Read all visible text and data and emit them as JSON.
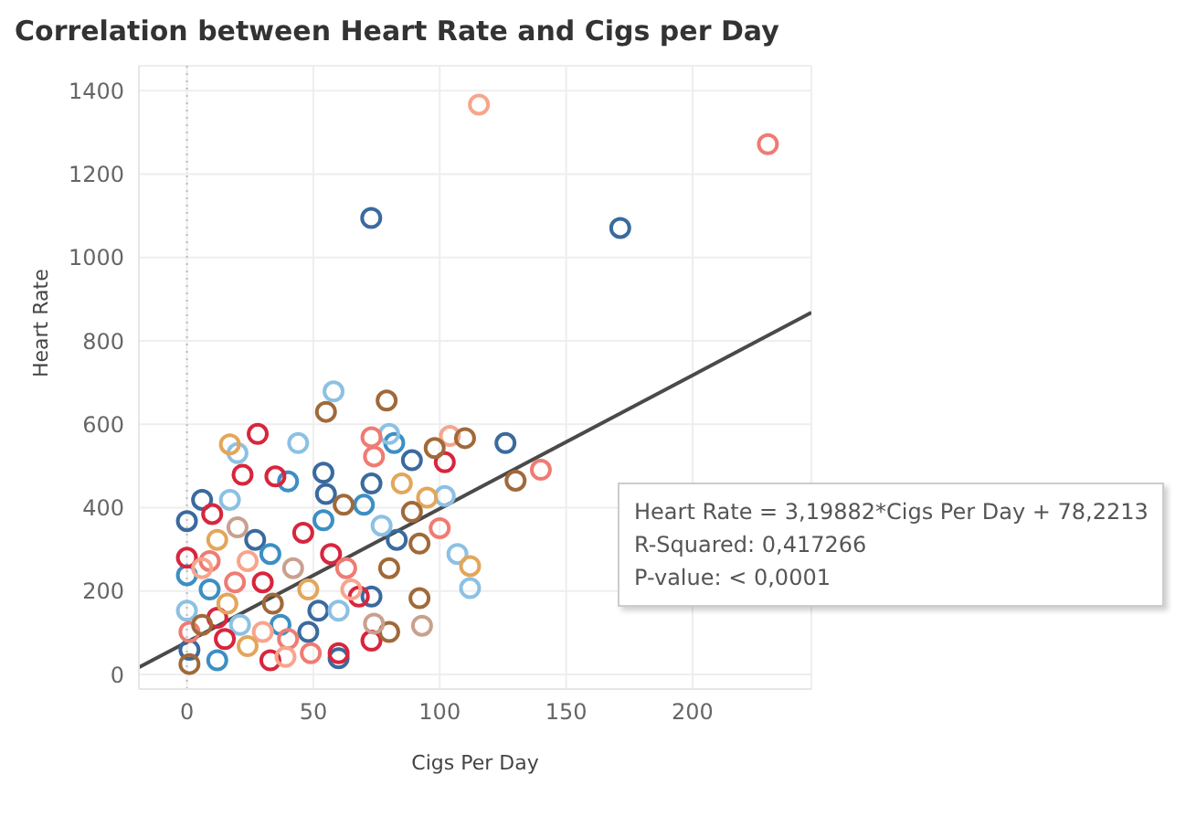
{
  "chart_data": {
    "type": "scatter",
    "title": "Correlation between Heart Rate and Cigs per Day",
    "xlabel": "Cigs Per Day",
    "ylabel": "Heart Rate",
    "xlim": [
      -19,
      247
    ],
    "ylim": [
      -35,
      1460
    ],
    "xticks": [
      0,
      50,
      100,
      150,
      200
    ],
    "yticks": [
      0,
      200,
      400,
      600,
      800,
      1000,
      1200,
      1400
    ],
    "grid": true,
    "marker": "circle",
    "ref_lines": [
      {
        "axis": "x",
        "value": 0,
        "color": "#bbbbbb",
        "line_style": "dotted"
      }
    ],
    "annotations": [
      "Heart Rate = 3,19882*Cigs Per Day + 78,2213",
      "R-Squared: 0,417266",
      "P-value: < 0,0001"
    ],
    "series": [
      {
        "color": "#3a6a9e",
        "x": [
          72.9,
          171.4,
          89,
          126,
          54,
          73,
          6,
          0,
          55,
          83,
          73,
          60,
          1,
          52,
          48,
          27
        ],
        "values": [
          1095,
          1071,
          514,
          555,
          484,
          458,
          419,
          368,
          433,
          323,
          187,
          39,
          59,
          153,
          102,
          323
        ]
      },
      {
        "color": "#3b8fc4",
        "x": [
          82,
          40,
          54,
          70,
          12,
          0,
          9,
          37,
          33
        ],
        "values": [
          555,
          463,
          370,
          407,
          34,
          238,
          204,
          119,
          289
        ]
      },
      {
        "color": "#8cc1e3",
        "x": [
          58,
          20,
          44,
          80,
          102,
          107,
          112,
          17,
          77,
          0,
          60,
          21
        ],
        "values": [
          679,
          531,
          555,
          577,
          428,
          289,
          207,
          419,
          357,
          153,
          153,
          119
        ]
      },
      {
        "color": "#d7263d",
        "x": [
          28,
          102,
          35,
          22,
          73,
          10,
          46,
          68,
          60,
          33,
          0,
          12,
          30,
          57,
          15
        ],
        "values": [
          577,
          509,
          475,
          479,
          81,
          385,
          340,
          187,
          51,
          34,
          280,
          136,
          221,
          289,
          85
        ]
      },
      {
        "color": "#ef7b73",
        "x": [
          229.8,
          73,
          74,
          140,
          100,
          49,
          1,
          19,
          63,
          40,
          9
        ],
        "values": [
          1272,
          569,
          523,
          491,
          351,
          51,
          102,
          221,
          255,
          85,
          272
        ]
      },
      {
        "color": "#f7a58c",
        "x": [
          115.5,
          104,
          39,
          6,
          24,
          65,
          30
        ],
        "values": [
          1367,
          572,
          42,
          255,
          272,
          204,
          102
        ]
      },
      {
        "color": "#e3a65a",
        "x": [
          17,
          85,
          112,
          95,
          16,
          48,
          24,
          12
        ],
        "values": [
          552,
          458,
          260,
          424,
          170,
          204,
          68,
          323
        ]
      },
      {
        "color": "#a0693a",
        "x": [
          55,
          79,
          98,
          110,
          130,
          92,
          80,
          92,
          89,
          62,
          80,
          1,
          34,
          6
        ],
        "values": [
          630,
          657,
          543,
          567,
          465,
          183,
          102,
          314,
          390,
          407,
          255,
          25,
          170,
          119
        ]
      },
      {
        "color": "#c9a08f",
        "x": [
          93,
          74,
          20,
          42
        ],
        "values": [
          117,
          122,
          353,
          255
        ]
      },
      {
        "type": "line",
        "marker": "none",
        "color": "#4a4a4a",
        "x": [
          -19,
          247
        ],
        "values": [
          17,
          868
        ]
      }
    ]
  }
}
